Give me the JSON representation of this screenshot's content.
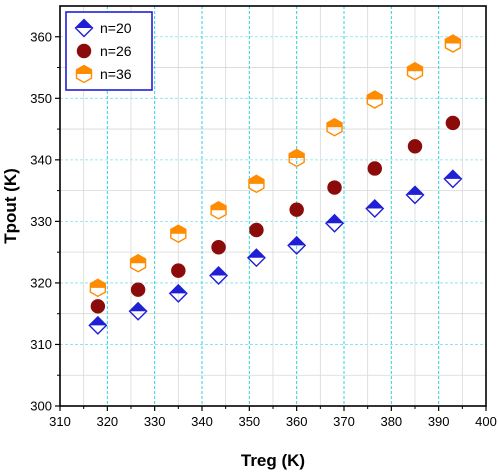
{
  "chart_data": {
    "type": "scatter",
    "xlabel": "Treg (K)",
    "ylabel": "Tpout (K)",
    "xlim": [
      310,
      400
    ],
    "ylim": [
      300,
      365
    ],
    "xticks": [
      "310",
      "320",
      "330",
      "340",
      "350",
      "360",
      "370",
      "380",
      "390",
      "400"
    ],
    "yticks": [
      "300",
      "310",
      "320",
      "330",
      "340",
      "350",
      "360"
    ],
    "grid": true,
    "legend_position": "top-left",
    "x": [
      318,
      326.5,
      335,
      343.5,
      351.5,
      360,
      368,
      376.5,
      385,
      393
    ],
    "series": [
      {
        "name": "n=20",
        "marker": "diamond-half",
        "color": "#1f1fd6",
        "values": [
          313.1,
          315.4,
          318.3,
          321.2,
          324.1,
          326.1,
          329.7,
          332.1,
          334.3,
          336.9
        ]
      },
      {
        "name": "n=26",
        "marker": "circle",
        "color": "#8b0a0a",
        "values": [
          316.2,
          318.9,
          322.0,
          325.8,
          328.6,
          331.9,
          335.5,
          338.6,
          342.2,
          346.0
        ]
      },
      {
        "name": "n=36",
        "marker": "hexagon-half",
        "color": "#ff8c00",
        "values": [
          319.2,
          323.2,
          328.0,
          331.8,
          336.1,
          340.3,
          345.3,
          349.8,
          354.4,
          358.9
        ]
      }
    ]
  }
}
